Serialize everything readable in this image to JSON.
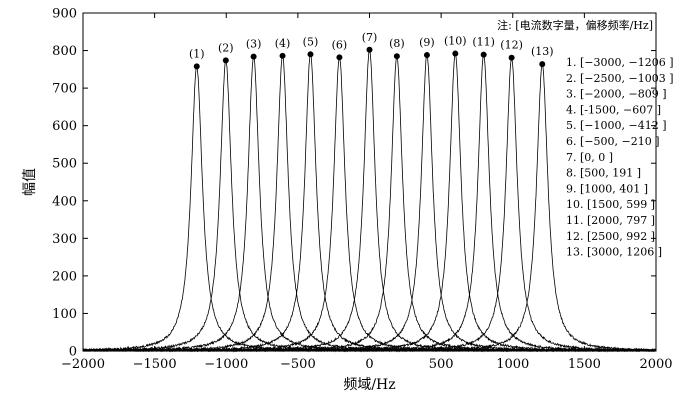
{
  "chart_data": {
    "type": "line",
    "xlabel": "频域/Hz",
    "ylabel": "幅值",
    "xlim": [
      -2000,
      2000
    ],
    "ylim": [
      0,
      900
    ],
    "xticks": [
      -2000,
      -1500,
      -1000,
      -500,
      0,
      500,
      1000,
      1500,
      2000
    ],
    "yticks": [
      0,
      100,
      200,
      300,
      400,
      500,
      600,
      700,
      800,
      900
    ],
    "xtick_labels": [
      "−2000",
      "−1500",
      "−1000",
      "−500",
      "0",
      "500",
      "1000",
      "1500",
      "2000"
    ],
    "ytick_labels": [
      "0",
      "100",
      "200",
      "300",
      "400",
      "500",
      "600",
      "700",
      "800",
      "900"
    ],
    "grid": false,
    "note": "注: [电流数字量，偏移频率/Hz]",
    "series": [
      {
        "label": "(1)",
        "legend": "1. [−3000, −1206 ]",
        "peak_x": -1206,
        "peak_y": 758
      },
      {
        "label": "(2)",
        "legend": "2. [−2500, −1003 ]",
        "peak_x": -1003,
        "peak_y": 774
      },
      {
        "label": "(3)",
        "legend": "3. [−2000, −809 ]",
        "peak_x": -809,
        "peak_y": 784
      },
      {
        "label": "(4)",
        "legend": "4. [-1500, −607 ]",
        "peak_x": -607,
        "peak_y": 786
      },
      {
        "label": "(5)",
        "legend": "5. [−1000, −412 ]",
        "peak_x": -412,
        "peak_y": 790
      },
      {
        "label": "(6)",
        "legend": "6. [−500, −210 ]",
        "peak_x": -210,
        "peak_y": 782
      },
      {
        "label": "(7)",
        "legend": "7. [0, 0 ]",
        "peak_x": 0,
        "peak_y": 802
      },
      {
        "label": "(8)",
        "legend": "8. [500, 191 ]",
        "peak_x": 191,
        "peak_y": 785
      },
      {
        "label": "(9)",
        "legend": "9. [1000, 401 ]",
        "peak_x": 401,
        "peak_y": 788
      },
      {
        "label": "(10)",
        "legend": "10. [1500, 599 ]",
        "peak_x": 599,
        "peak_y": 792
      },
      {
        "label": "(11)",
        "legend": "11. [2000, 797 ]",
        "peak_x": 797,
        "peak_y": 789
      },
      {
        "label": "(12)",
        "legend": "12. [2500, 992 ]",
        "peak_x": 992,
        "peak_y": 781
      },
      {
        "label": "(13)",
        "legend": "13. [3000, 1206 ]",
        "peak_x": 1206,
        "peak_y": 764
      }
    ]
  }
}
